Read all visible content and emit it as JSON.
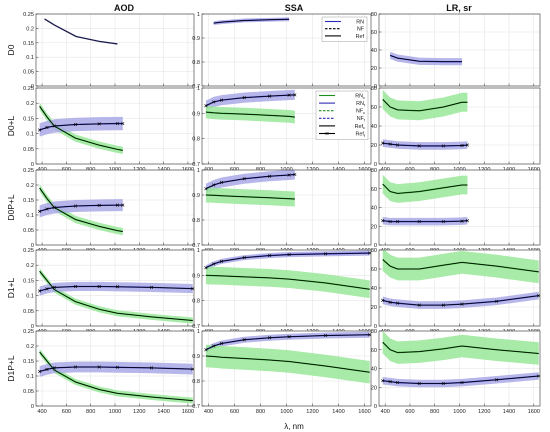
{
  "chart_data": {
    "type": "line",
    "columns": [
      {
        "title": "AOD",
        "ylim": [
          0,
          0.25
        ],
        "yticks": [
          "0",
          "0.05",
          "0.1",
          "0.15",
          "0.2",
          "0.25"
        ],
        "ytick_values": [
          0,
          0.05,
          0.1,
          0.15,
          0.2,
          0.25
        ]
      },
      {
        "title": "SSA",
        "ylim": [
          0.7,
          1.0
        ],
        "yticks": [
          "0.7",
          "0.8",
          "0.9",
          "1"
        ],
        "ytick_values": [
          0.7,
          0.8,
          0.9,
          1.0
        ]
      },
      {
        "title": "LR, sr",
        "ylim": [
          0,
          80
        ],
        "yticks": [
          "0",
          "20",
          "40",
          "60",
          "80"
        ],
        "ytick_values": [
          0,
          20,
          40,
          60,
          80
        ]
      }
    ],
    "rows": [
      "D0",
      "D0+L",
      "D0P+L",
      "D1+L",
      "D1P+L"
    ],
    "xlim": [
      350,
      1650
    ],
    "xticks": [
      "400",
      "600",
      "800",
      "1000",
      "1200",
      "1400",
      "1600"
    ],
    "xtick_values": [
      400,
      600,
      800,
      1000,
      1200,
      1400,
      1600
    ],
    "xlabel": "λ, nm",
    "colors": {
      "fine": "#2b2bb8",
      "fine_band": "#a9a9e6",
      "coarse": "#1e8f1e",
      "coarse_band": "#99e699",
      "ref": "#000000"
    },
    "legends": [
      {
        "row": 0,
        "col": 1,
        "entries": [
          {
            "label": "RN",
            "sub": "",
            "style": "solid",
            "color": "#2b2bb8"
          },
          {
            "label": "NF",
            "sub": "",
            "style": "dashed",
            "color": "#000000"
          },
          {
            "label": "Ref",
            "sub": "",
            "style": "solid",
            "color": "#000000"
          }
        ]
      },
      {
        "row": 1,
        "col": 1,
        "entries": [
          {
            "label": "RN",
            "sub": "c",
            "style": "solid",
            "color": "#1e8f1e"
          },
          {
            "label": "RN",
            "sub": "f",
            "style": "solid",
            "color": "#2b2bb8"
          },
          {
            "label": "NF",
            "sub": "c",
            "style": "dashed",
            "color": "#1e8f1e"
          },
          {
            "label": "NF",
            "sub": "f",
            "style": "dashed",
            "color": "#2b2bb8"
          },
          {
            "label": "Ref",
            "sub": "c",
            "style": "solid",
            "color": "#000000"
          },
          {
            "label": "Ref",
            "sub": "f",
            "style": "solid-marker",
            "color": "#000000"
          }
        ]
      }
    ],
    "panels": [
      {
        "row": 0,
        "col": 0,
        "series": [
          {
            "kind": "ref",
            "x": [
              420,
              500,
              680,
              870,
              1020
            ],
            "y": [
              0.233,
              0.212,
              0.172,
              0.155,
              0.146
            ],
            "color": "#1a1a4d"
          }
        ]
      },
      {
        "row": 0,
        "col": 1,
        "series": [
          {
            "kind": "fine",
            "x": [
              440,
              500,
              675,
              870,
              1020
            ],
            "y": [
              0.962,
              0.966,
              0.973,
              0.976,
              0.978
            ],
            "band": 0.008,
            "markers": false
          }
        ]
      },
      {
        "row": 0,
        "col": 2,
        "series": [
          {
            "kind": "fine",
            "x": [
              440,
              500,
              675,
              870,
              1020
            ],
            "y": [
              34,
              31,
              27.5,
              27,
              27
            ],
            "band": 4,
            "markers": false
          }
        ]
      },
      {
        "row": 1,
        "col": 0,
        "series": [
          {
            "kind": "coarse",
            "x": [
              380,
              440,
              500,
              675,
              870,
              1020,
              1064
            ],
            "y": [
              0.19,
              0.155,
              0.125,
              0.085,
              0.062,
              0.048,
              0.045
            ],
            "band": 0.012,
            "markers": false
          },
          {
            "kind": "fine",
            "x": [
              380,
              440,
              500,
              675,
              870,
              1020,
              1064
            ],
            "y": [
              0.112,
              0.12,
              0.125,
              0.13,
              0.132,
              0.133,
              0.133
            ],
            "band": 0.022,
            "markers": true
          }
        ]
      },
      {
        "row": 1,
        "col": 1,
        "series": [
          {
            "kind": "fine",
            "x": [
              380,
              440,
              500,
              675,
              870,
              1020,
              1064
            ],
            "y": [
              0.93,
              0.945,
              0.952,
              0.962,
              0.968,
              0.972,
              0.973
            ],
            "band": 0.02,
            "markers": true
          },
          {
            "kind": "coarse",
            "x": [
              380,
              440,
              500,
              675,
              870,
              1020,
              1064
            ],
            "y": [
              0.905,
              0.902,
              0.9,
              0.897,
              0.892,
              0.888,
              0.885
            ],
            "band": 0.025,
            "markers": false
          }
        ]
      },
      {
        "row": 1,
        "col": 2,
        "series": [
          {
            "kind": "coarse",
            "x": [
              380,
              440,
              500,
              675,
              870,
              1020,
              1064
            ],
            "y": [
              68,
              60,
              57,
              56,
              60,
              65,
              65
            ],
            "band": 10,
            "markers": false
          },
          {
            "kind": "fine",
            "x": [
              380,
              440,
              500,
              675,
              870,
              1020,
              1064
            ],
            "y": [
              22,
              21,
              20,
              19,
              19,
              19.5,
              20
            ],
            "band": 4,
            "markers": true
          }
        ]
      },
      {
        "row": 2,
        "col": 0,
        "series": [
          {
            "kind": "coarse",
            "x": [
              380,
              440,
              500,
              675,
              870,
              1020,
              1064
            ],
            "y": [
              0.19,
              0.155,
              0.125,
              0.085,
              0.062,
              0.048,
              0.045
            ],
            "band": 0.012,
            "markers": false
          },
          {
            "kind": "fine",
            "x": [
              380,
              440,
              500,
              675,
              870,
              1020,
              1064
            ],
            "y": [
              0.112,
              0.12,
              0.125,
              0.13,
              0.132,
              0.133,
              0.133
            ],
            "band": 0.02,
            "markers": true
          }
        ]
      },
      {
        "row": 2,
        "col": 1,
        "series": [
          {
            "kind": "fine",
            "x": [
              380,
              440,
              500,
              675,
              870,
              1020,
              1064
            ],
            "y": [
              0.925,
              0.94,
              0.95,
              0.965,
              0.975,
              0.98,
              0.982
            ],
            "band": 0.02,
            "markers": true
          },
          {
            "kind": "coarse",
            "x": [
              380,
              440,
              500,
              675,
              870,
              1020,
              1064
            ],
            "y": [
              0.9,
              0.899,
              0.897,
              0.893,
              0.889,
              0.885,
              0.884
            ],
            "band": 0.03,
            "markers": false
          }
        ]
      },
      {
        "row": 2,
        "col": 2,
        "series": [
          {
            "kind": "coarse",
            "x": [
              380,
              440,
              500,
              675,
              870,
              1020,
              1064
            ],
            "y": [
              65,
              57,
              55,
              57,
              61,
              64,
              64
            ],
            "band": 10,
            "markers": false
          },
          {
            "kind": "fine",
            "x": [
              380,
              440,
              500,
              675,
              870,
              1020,
              1064
            ],
            "y": [
              26,
              25,
              25,
              25,
              25,
              25.5,
              26
            ],
            "band": 4,
            "markers": true
          }
        ]
      },
      {
        "row": 3,
        "col": 0,
        "series": [
          {
            "kind": "coarse",
            "x": [
              380,
              440,
              500,
              675,
              870,
              1020,
              1300,
              1640
            ],
            "y": [
              0.18,
              0.15,
              0.12,
              0.08,
              0.055,
              0.042,
              0.03,
              0.018
            ],
            "band": 0.01,
            "markers": false
          },
          {
            "kind": "fine",
            "x": [
              380,
              440,
              500,
              675,
              870,
              1020,
              1300,
              1640
            ],
            "y": [
              0.115,
              0.122,
              0.127,
              0.13,
              0.13,
              0.129,
              0.127,
              0.123
            ],
            "band": 0.015,
            "markers": true
          }
        ]
      },
      {
        "row": 3,
        "col": 1,
        "series": [
          {
            "kind": "fine",
            "x": [
              380,
              440,
              500,
              675,
              870,
              1020,
              1300,
              1640
            ],
            "y": [
              0.93,
              0.945,
              0.955,
              0.97,
              0.978,
              0.982,
              0.985,
              0.988
            ],
            "band": 0.01,
            "markers": true
          },
          {
            "kind": "coarse",
            "x": [
              380,
              440,
              500,
              675,
              870,
              1020,
              1300,
              1640
            ],
            "y": [
              0.9,
              0.899,
              0.898,
              0.894,
              0.89,
              0.885,
              0.87,
              0.845
            ],
            "band": 0.035,
            "markers": false
          }
        ]
      },
      {
        "row": 3,
        "col": 2,
        "series": [
          {
            "kind": "coarse",
            "x": [
              380,
              440,
              500,
              675,
              870,
              1020,
              1300,
              1640
            ],
            "y": [
              70,
              63,
              60,
              60,
              64,
              67,
              63,
              57
            ],
            "band": 12,
            "markers": false
          },
          {
            "kind": "fine",
            "x": [
              380,
              440,
              500,
              675,
              870,
              1020,
              1300,
              1640
            ],
            "y": [
              27,
              25,
              24,
              22,
              22,
              23,
              26,
              32
            ],
            "band": 4,
            "markers": true
          }
        ]
      },
      {
        "row": 4,
        "col": 0,
        "series": [
          {
            "kind": "coarse",
            "x": [
              380,
              440,
              500,
              675,
              870,
              1020,
              1300,
              1640
            ],
            "y": [
              0.18,
              0.15,
              0.12,
              0.08,
              0.055,
              0.042,
              0.03,
              0.018
            ],
            "band": 0.01,
            "markers": false
          },
          {
            "kind": "fine",
            "x": [
              380,
              440,
              500,
              675,
              870,
              1020,
              1300,
              1640
            ],
            "y": [
              0.115,
              0.122,
              0.127,
              0.13,
              0.13,
              0.129,
              0.127,
              0.123
            ],
            "band": 0.018,
            "markers": true
          }
        ]
      },
      {
        "row": 4,
        "col": 1,
        "series": [
          {
            "kind": "fine",
            "x": [
              380,
              440,
              500,
              675,
              870,
              1020,
              1300,
              1640
            ],
            "y": [
              0.925,
              0.94,
              0.95,
              0.965,
              0.973,
              0.977,
              0.982,
              0.985
            ],
            "band": 0.012,
            "markers": true
          },
          {
            "kind": "coarse",
            "x": [
              380,
              440,
              500,
              675,
              870,
              1020,
              1300,
              1640
            ],
            "y": [
              0.9,
              0.898,
              0.895,
              0.89,
              0.884,
              0.878,
              0.86,
              0.835
            ],
            "band": 0.045,
            "markers": false
          }
        ]
      },
      {
        "row": 4,
        "col": 2,
        "series": [
          {
            "kind": "coarse",
            "x": [
              380,
              440,
              500,
              675,
              870,
              1020,
              1300,
              1640
            ],
            "y": [
              68,
              60,
              57,
              58,
              61,
              64,
              60,
              56
            ],
            "band": 12,
            "markers": false
          },
          {
            "kind": "fine",
            "x": [
              380,
              440,
              500,
              675,
              870,
              1020,
              1300,
              1640
            ],
            "y": [
              27,
              26,
              25,
              24,
              24,
              25,
              28,
              32
            ],
            "band": 4,
            "markers": true
          }
        ]
      }
    ]
  }
}
